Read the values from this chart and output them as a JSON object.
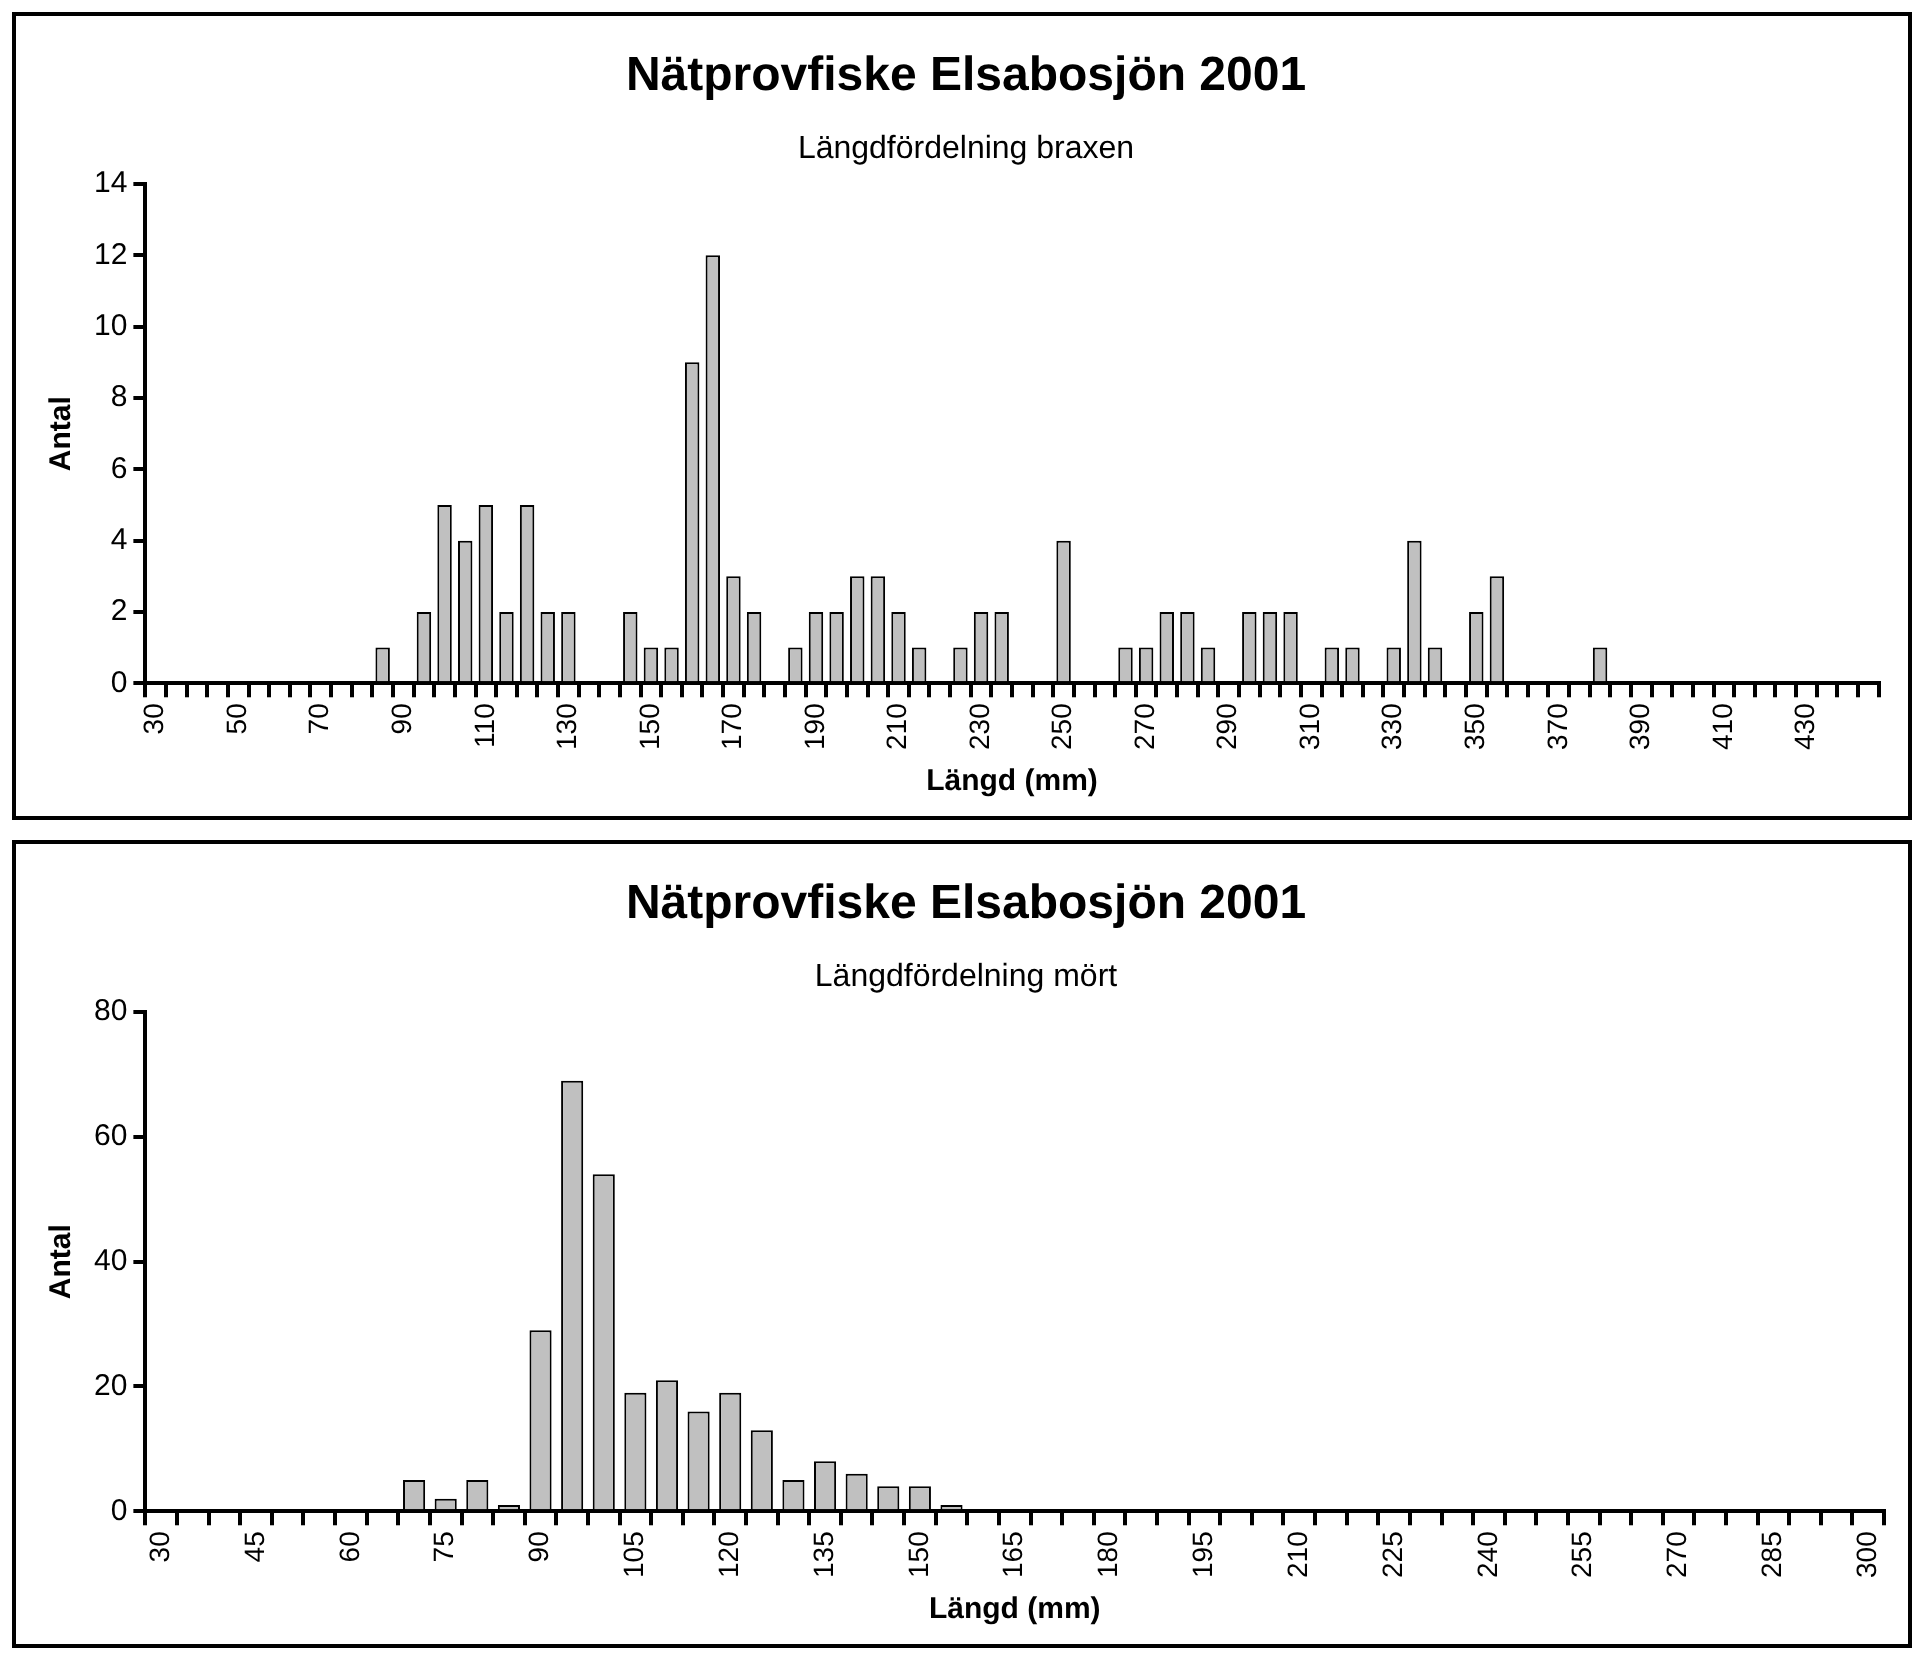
{
  "chart_data": [
    {
      "type": "bar",
      "title": "Nätprovfiske Elsabosjön 2001",
      "subtitle": "Längdfördelning braxen",
      "xlabel": "Längd (mm)",
      "ylabel": "Antal",
      "color": "#c0c0c0",
      "grid": false,
      "ylim": [
        0,
        14
      ],
      "yticks": [
        0,
        2,
        4,
        6,
        8,
        10,
        12,
        14
      ],
      "categories": [
        "30",
        null,
        null,
        null,
        "50",
        null,
        null,
        null,
        "70",
        null,
        null,
        null,
        "90",
        null,
        null,
        null,
        "110",
        null,
        null,
        null,
        "130",
        null,
        null,
        null,
        "150",
        null,
        null,
        null,
        "170",
        null,
        null,
        null,
        "190",
        null,
        null,
        null,
        "210",
        null,
        null,
        null,
        "230",
        null,
        null,
        null,
        "250",
        null,
        null,
        null,
        "270",
        null,
        null,
        null,
        "290",
        null,
        null,
        null,
        "310",
        null,
        null,
        null,
        "330",
        null,
        null,
        null,
        "350",
        null,
        null,
        null,
        "370",
        null,
        null,
        null,
        "390",
        null,
        null,
        null,
        "410",
        null,
        null,
        null,
        "430",
        null,
        null,
        null
      ],
      "values": [
        0,
        0,
        0,
        0,
        0,
        0,
        0,
        0,
        0,
        0,
        0,
        1,
        0,
        2,
        5,
        4,
        5,
        2,
        5,
        2,
        2,
        0,
        0,
        2,
        1,
        1,
        9,
        12,
        3,
        2,
        0,
        1,
        2,
        2,
        3,
        3,
        2,
        1,
        0,
        1,
        2,
        2,
        0,
        0,
        4,
        0,
        0,
        1,
        1,
        2,
        2,
        1,
        0,
        2,
        2,
        2,
        0,
        1,
        1,
        0,
        1,
        4,
        1,
        0,
        2,
        3,
        0,
        0,
        0,
        0,
        1,
        0,
        0,
        0,
        0,
        0,
        0,
        0,
        0,
        0,
        0,
        0,
        0,
        0
      ]
    },
    {
      "type": "bar",
      "title": "Nätprovfiske Elsabosjön 2001",
      "subtitle": "Längdfördelning mört",
      "xlabel": "Längd (mm)",
      "ylabel": "Antal",
      "color": "#c0c0c0",
      "grid": false,
      "ylim": [
        0,
        80
      ],
      "yticks": [
        0,
        20,
        40,
        60,
        80
      ],
      "categories": [
        "30",
        null,
        null,
        "45",
        null,
        null,
        "60",
        null,
        null,
        "75",
        null,
        null,
        "90",
        null,
        null,
        "105",
        null,
        null,
        "120",
        null,
        null,
        "135",
        null,
        null,
        "150",
        null,
        null,
        "165",
        null,
        null,
        "180",
        null,
        null,
        "195",
        null,
        null,
        "210",
        null,
        null,
        "225",
        null,
        null,
        "240",
        null,
        null,
        "255",
        null,
        null,
        "270",
        null,
        null,
        "285",
        null,
        null,
        "300"
      ],
      "values": [
        0,
        0,
        0,
        0,
        0,
        0,
        0,
        0,
        5,
        2,
        5,
        1,
        29,
        69,
        54,
        19,
        21,
        16,
        19,
        13,
        5,
        8,
        6,
        4,
        4,
        1,
        0,
        0,
        0,
        0,
        0,
        0,
        0,
        0,
        0,
        0,
        0,
        0,
        0,
        0,
        0,
        0,
        0,
        0,
        0,
        0,
        0,
        0,
        0,
        0,
        0,
        0,
        0,
        0,
        0
      ]
    }
  ]
}
